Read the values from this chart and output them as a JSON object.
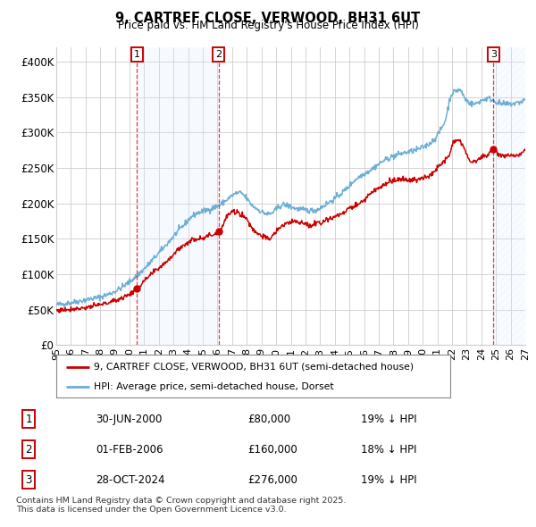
{
  "title": "9, CARTREF CLOSE, VERWOOD, BH31 6UT",
  "subtitle": "Price paid vs. HM Land Registry's House Price Index (HPI)",
  "xlim_start": 1995.0,
  "xlim_end": 2027.0,
  "ylim": [
    0,
    420000
  ],
  "yticks": [
    0,
    50000,
    100000,
    150000,
    200000,
    250000,
    300000,
    350000,
    400000
  ],
  "ytick_labels": [
    "£0",
    "£50K",
    "£100K",
    "£150K",
    "£200K",
    "£250K",
    "£300K",
    "£350K",
    "£400K"
  ],
  "xtick_years": [
    1995,
    1996,
    1997,
    1998,
    1999,
    2000,
    2001,
    2002,
    2003,
    2004,
    2005,
    2006,
    2007,
    2008,
    2009,
    2010,
    2011,
    2012,
    2013,
    2014,
    2015,
    2016,
    2017,
    2018,
    2019,
    2020,
    2021,
    2022,
    2023,
    2024,
    2025,
    2026,
    2027
  ],
  "xtick_labels": [
    "95",
    "96",
    "97",
    "98",
    "99",
    "00",
    "01",
    "02",
    "03",
    "04",
    "05",
    "06",
    "07",
    "08",
    "09",
    "10",
    "11",
    "12",
    "13",
    "14",
    "15",
    "16",
    "17",
    "18",
    "19",
    "20",
    "21",
    "22",
    "23",
    "24",
    "25",
    "26",
    "27"
  ],
  "purchases": [
    {
      "label": "1",
      "date_decimal": 2000.5,
      "price": 80000,
      "date_str": "30-JUN-2000",
      "price_str": "£80,000",
      "hpi_str": "19% ↓ HPI"
    },
    {
      "label": "2",
      "date_decimal": 2006.083,
      "price": 160000,
      "date_str": "01-FEB-2006",
      "price_str": "£160,000",
      "hpi_str": "18% ↓ HPI"
    },
    {
      "label": "3",
      "date_decimal": 2024.83,
      "price": 276000,
      "date_str": "28-OCT-2024",
      "price_str": "£276,000",
      "hpi_str": "19% ↓ HPI"
    }
  ],
  "legend_house": "9, CARTREF CLOSE, VERWOOD, BH31 6UT (semi-detached house)",
  "legend_hpi": "HPI: Average price, semi-detached house, Dorset",
  "footnote": "Contains HM Land Registry data © Crown copyright and database right 2025.\nThis data is licensed under the Open Government Licence v3.0.",
  "bg_color": "#ffffff",
  "grid_color": "#cccccc",
  "hpi_line_color": "#6baed6",
  "house_line_color": "#cc0000",
  "vline_color": "#cc0000",
  "shade_color": "#ddeeff",
  "hatch_color": "#ddeeff"
}
